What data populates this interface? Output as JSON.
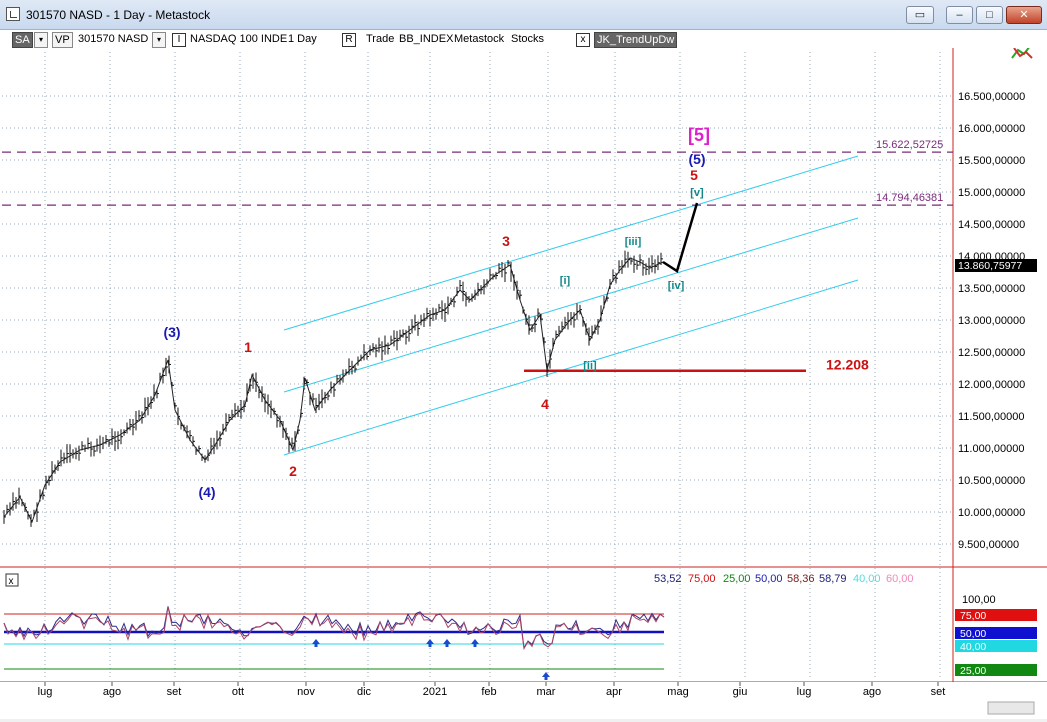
{
  "window": {
    "title": "301570 NASD - 1 Day - Metastock",
    "buttons": [
      "restore-window",
      "minimize",
      "maximize",
      "close"
    ]
  },
  "toolbar": {
    "items": [
      {
        "label": "SA",
        "style": "dark"
      },
      {
        "label": "VP",
        "style": "box"
      },
      {
        "label": "301570 NASD",
        "style": "text"
      },
      {
        "label": "I",
        "style": "chk"
      },
      {
        "label": "NASDAQ 100 INDE",
        "style": "text"
      },
      {
        "label": "1 Day",
        "style": "text"
      },
      {
        "label": "R",
        "style": "chk"
      },
      {
        "label": "Trade",
        "style": "text"
      },
      {
        "label": "BB_INDEX",
        "style": "text"
      },
      {
        "label": "Metastock",
        "style": "text"
      },
      {
        "label": "Stocks",
        "style": "text"
      },
      {
        "label": "x",
        "style": "chk"
      },
      {
        "label": "JK_TrendUpDw",
        "style": "dark"
      }
    ]
  },
  "price_axis": {
    "labels": [
      "16.500,00000",
      "16.000,00000",
      "15.500,00000",
      "15.000,00000",
      "14.500,00000",
      "14.000,00000",
      "13.500,00000",
      "13.000,00000",
      "12.500,00000",
      "12.000,00000",
      "11.500,00000",
      "11.000,00000",
      "10.500,00000",
      "10.000,00000",
      "9.500,00000"
    ],
    "last_price": "13.860,75977",
    "levels": [
      {
        "label": "15.622,52725",
        "value": 15622.52725
      },
      {
        "label": "14.794,46381",
        "value": 14794.46381
      }
    ],
    "support": {
      "label": "12.208",
      "value": 12208
    }
  },
  "chart_data": {
    "type": "line",
    "y_range": [
      9500,
      16500
    ],
    "annotations": [
      {
        "text": "(3)",
        "color": "#1a1ab4"
      },
      {
        "text": "(4)",
        "color": "#1a1ab4"
      },
      {
        "text": "1",
        "color": "#cc1111"
      },
      {
        "text": "2",
        "color": "#cc1111"
      },
      {
        "text": "3",
        "color": "#cc1111"
      },
      {
        "text": "4",
        "color": "#cc1111"
      },
      {
        "text": "5",
        "color": "#cc1111"
      },
      {
        "text": "(5)",
        "color": "#1a1ab4"
      },
      {
        "text": "[5]",
        "color": "#dd22cc"
      },
      {
        "text": "[i]",
        "color": "#118888"
      },
      {
        "text": "[ii]",
        "color": "#118888"
      },
      {
        "text": "[iii]",
        "color": "#118888"
      },
      {
        "text": "[iv]",
        "color": "#118888"
      },
      {
        "text": "[v]",
        "color": "#118888"
      }
    ]
  },
  "indicator": {
    "values": [
      {
        "label": "53,52",
        "color": "#1a1a7a"
      },
      {
        "label": "75,00",
        "color": "#cc1111"
      },
      {
        "label": "25,00",
        "color": "#118811"
      },
      {
        "label": "50,00",
        "color": "#1a1ab4"
      },
      {
        "label": "58,36",
        "color": "#7a1a1a"
      },
      {
        "label": "58,79",
        "color": "#1a1a7a"
      },
      {
        "label": "40,00",
        "color": "#55dddd"
      },
      {
        "label": "60,00",
        "color": "#ee88bb"
      }
    ],
    "axis_label": "100,00",
    "tags": [
      {
        "label": "75,00",
        "bg": "#e01010"
      },
      {
        "label": "50,00",
        "bg": "#1010d0"
      },
      {
        "label": "40,00",
        "bg": "#22d8e0"
      },
      {
        "label": "25,00",
        "bg": "#118811"
      }
    ]
  },
  "xaxis": {
    "labels": [
      "lug",
      "ago",
      "set",
      "ott",
      "nov",
      "dic",
      "2021",
      "feb",
      "mar",
      "apr",
      "mag",
      "giu",
      "lug",
      "ago",
      "set"
    ]
  }
}
